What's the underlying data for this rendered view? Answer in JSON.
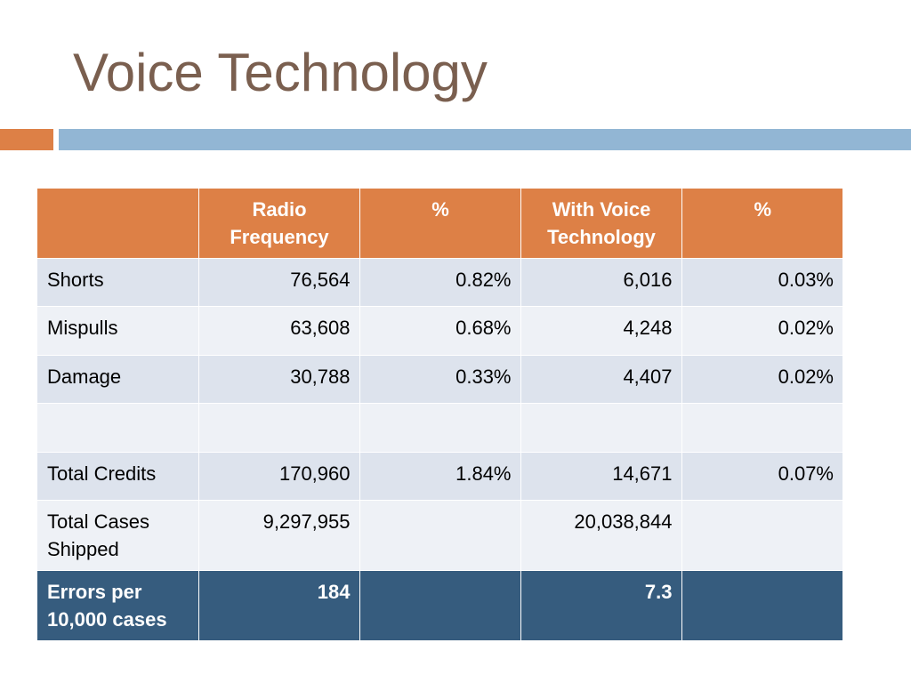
{
  "slide": {
    "title": "Voice Technology"
  },
  "colors": {
    "title": "#7a5f4f",
    "accent_orange": "#dd8046",
    "accent_blue": "#92b6d4",
    "header_bg": "#dd8046",
    "row_band_dark": "#dde3ed",
    "row_band_light": "#eef1f6",
    "footer_bg": "#365c7e"
  },
  "table": {
    "headers": [
      "",
      "Radio Frequency",
      "%",
      "With Voice Technology",
      "%"
    ],
    "rows": [
      [
        "Shorts",
        "76,564",
        "0.82%",
        "6,016",
        "0.03%"
      ],
      [
        "Mispulls",
        "63,608",
        "0.68%",
        "4,248",
        "0.02%"
      ],
      [
        "Damage",
        "30,788",
        "0.33%",
        "4,407",
        "0.02%"
      ],
      [
        "",
        "",
        "",
        "",
        ""
      ],
      [
        "Total Credits",
        "170,960",
        "1.84%",
        "14,671",
        "0.07%"
      ],
      [
        "Total Cases Shipped",
        "9,297,955",
        "",
        "20,038,844",
        ""
      ]
    ],
    "footer": [
      "Errors per 10,000 cases",
      "184",
      "",
      "7.3",
      ""
    ]
  }
}
